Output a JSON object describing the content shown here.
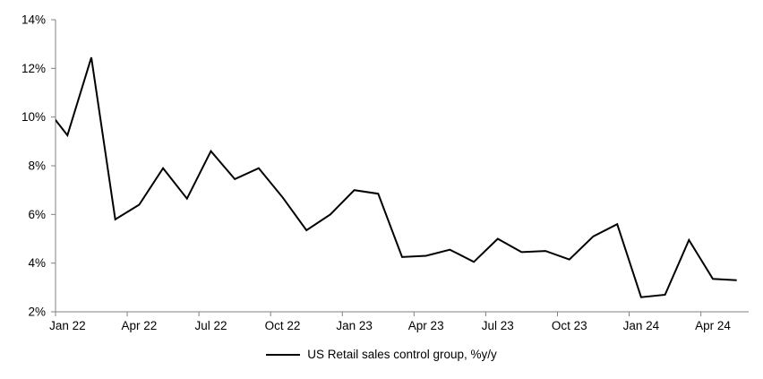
{
  "chart_data": {
    "type": "line",
    "title": "",
    "legend": "US Retail sales control group, %y/y",
    "x": [
      "Dec 21",
      "Jan 22",
      "Feb 22",
      "Mar 22",
      "Apr 22",
      "May 22",
      "Jun 22",
      "Jul 22",
      "Aug 22",
      "Sep 22",
      "Oct 22",
      "Nov 22",
      "Dec 22",
      "Jan 23",
      "Feb 23",
      "Mar 23",
      "Apr 23",
      "May 23",
      "Jun 23",
      "Jul 23",
      "Aug 23",
      "Sep 23",
      "Oct 23",
      "Nov 23",
      "Dec 23",
      "Jan 24",
      "Feb 24",
      "Mar 24",
      "Apr 24",
      "May 24"
    ],
    "values": [
      10.5,
      9.25,
      12.45,
      5.8,
      6.4,
      7.9,
      6.65,
      8.6,
      7.45,
      7.9,
      6.7,
      5.35,
      6.0,
      7.0,
      6.85,
      4.25,
      4.3,
      4.55,
      4.05,
      5.0,
      4.45,
      4.5,
      4.15,
      5.1,
      5.6,
      2.6,
      2.7,
      4.95,
      3.35,
      3.3
    ],
    "first_point_clipped_off_axis": true,
    "xtick_labels": [
      "Jan 22",
      "Apr 22",
      "Jul 22",
      "Oct 22",
      "Jan 23",
      "Apr 23",
      "Jul 23",
      "Oct 23",
      "Jan 24",
      "Apr 24"
    ],
    "xtick_interval_months": 3,
    "ytick_labels": [
      "2%",
      "4%",
      "6%",
      "8%",
      "10%",
      "12%",
      "14%"
    ],
    "ylim": [
      2,
      14
    ],
    "ytick_step": 2,
    "grid": false,
    "legend_position": "bottom-center",
    "line_color": "#000000",
    "axis_color": "#808080",
    "text_color": "#000000"
  }
}
